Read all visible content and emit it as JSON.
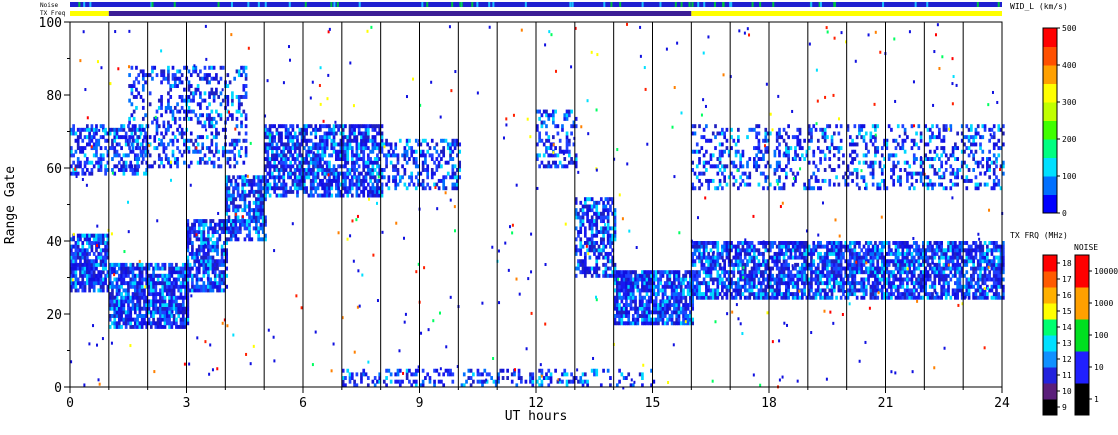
{
  "chart_data": {
    "type": "heatmap",
    "title": "",
    "xlabel": "UT hours",
    "ylabel": "Range Gate",
    "xlim": [
      0,
      24
    ],
    "ylim": [
      0,
      100
    ],
    "x_ticks": [
      "0",
      "3",
      "6",
      "9",
      "12",
      "15",
      "18",
      "21",
      "24"
    ],
    "y_ticks": [
      "0",
      "20",
      "40",
      "60",
      "80",
      "100"
    ],
    "top_bars": {
      "noise_label": "Noise",
      "txfreq_label": "TX Freq",
      "txfreq_segments": [
        {
          "start": 0,
          "end": 1,
          "color": "#ffff00"
        },
        {
          "start": 1,
          "end": 16,
          "color": "#3c1e96"
        },
        {
          "start": 16,
          "end": 24,
          "color": "#ffff00"
        }
      ],
      "noise_color": "#2020d0"
    },
    "bands": [
      {
        "x0": 0,
        "x1": 1,
        "y0": 26,
        "y1": 42,
        "density": 0.8
      },
      {
        "x0": 1,
        "x1": 3,
        "y0": 16,
        "y1": 34,
        "density": 0.8
      },
      {
        "x0": 3,
        "x1": 4,
        "y0": 26,
        "y1": 46,
        "density": 0.75
      },
      {
        "x0": 4,
        "x1": 5,
        "y0": 40,
        "y1": 58,
        "density": 0.7
      },
      {
        "x0": 5,
        "x1": 8,
        "y0": 52,
        "y1": 72,
        "density": 0.7
      },
      {
        "x0": 8,
        "x1": 10,
        "y0": 54,
        "y1": 68,
        "density": 0.4
      },
      {
        "x0": 12,
        "x1": 13,
        "y0": 60,
        "y1": 76,
        "density": 0.35
      },
      {
        "x0": 13,
        "x1": 14,
        "y0": 30,
        "y1": 52,
        "density": 0.6
      },
      {
        "x0": 14,
        "x1": 16,
        "y0": 17,
        "y1": 32,
        "density": 0.8
      },
      {
        "x0": 16,
        "x1": 24,
        "y0": 24,
        "y1": 40,
        "density": 0.75
      },
      {
        "x0": 16,
        "x1": 24,
        "y0": 54,
        "y1": 72,
        "density": 0.3
      },
      {
        "x0": 0,
        "x1": 2,
        "y0": 58,
        "y1": 72,
        "density": 0.5
      },
      {
        "x0": 1.5,
        "x1": 4.5,
        "y0": 60,
        "y1": 88,
        "density": 0.3
      },
      {
        "x0": 7,
        "x1": 15,
        "y0": 0,
        "y1": 5,
        "density": 0.3
      }
    ],
    "scan_boundaries_hours": [
      1,
      2,
      3,
      4,
      5,
      6,
      7,
      8,
      9,
      10,
      11,
      12,
      13,
      14,
      15,
      16,
      17,
      18,
      19,
      20,
      21,
      22,
      23
    ],
    "colorbars": [
      {
        "name": "WID_L (km/s)",
        "ticks": [
          "0",
          "100",
          "200",
          "300",
          "400",
          "500"
        ],
        "colors": [
          "#0000ff",
          "#0070ff",
          "#00e0ff",
          "#00ff80",
          "#40ff00",
          "#c0ff00",
          "#ffff00",
          "#ffa000",
          "#ff5000",
          "#ff0000"
        ]
      },
      {
        "name": "TX FRQ (MHz)",
        "ticks": [
          "9",
          "10",
          "11",
          "12",
          "13",
          "14",
          "15",
          "16",
          "17",
          "18"
        ],
        "colors": [
          "#000000",
          "#5a1e7a",
          "#2222dd",
          "#1090ff",
          "#00e0ff",
          "#00ff70",
          "#ffff00",
          "#ffb000",
          "#ff5a00",
          "#ff0000"
        ]
      },
      {
        "name": "NOISE",
        "ticks": [
          "1",
          "10",
          "100",
          "1000",
          "10000"
        ],
        "colors": [
          "#000000",
          "#2020ff",
          "#00e020",
          "#ffa000",
          "#ff0000"
        ]
      }
    ]
  }
}
